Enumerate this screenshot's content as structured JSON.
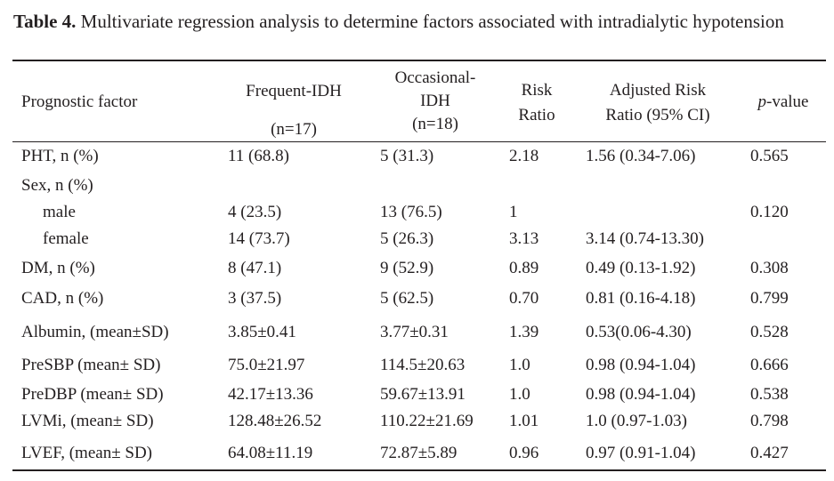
{
  "caption": {
    "label": "Table 4.",
    "text": " Multivariate regression analysis to determine factors associated with intradialytic hypotension"
  },
  "headers": {
    "factor": "Prognostic factor",
    "frequent_l1": "Frequent-IDH",
    "frequent_l2": "(n=17)",
    "occasional_l1": "Occasional-",
    "occasional_l2": "IDH",
    "occasional_l3": "(n=18)",
    "rr_l1": "Risk",
    "rr_l2": "Ratio",
    "arr_l1": "Adjusted Risk",
    "arr_l2": "Ratio (95% CI)",
    "p_italic": "p",
    "p_rest": "-value"
  },
  "rows": [
    {
      "factor": "PHT, n (%)",
      "frequent": "11 (68.8)",
      "occasional": "5 (31.3)",
      "rr": "2.18",
      "arr": "1.56 (0.34-7.06)",
      "p": "0.565"
    },
    {
      "factor": "Sex, n (%)",
      "frequent": "",
      "occasional": "",
      "rr": "",
      "arr": "",
      "p": ""
    },
    {
      "factor": "male",
      "frequent": "4 (23.5)",
      "occasional": "13 (76.5)",
      "rr": "1",
      "arr": "",
      "p": "0.120"
    },
    {
      "factor": "female",
      "frequent": "14 (73.7)",
      "occasional": "5 (26.3)",
      "rr": "3.13",
      "arr": "3.14 (0.74-13.30)",
      "p": ""
    },
    {
      "factor": "DM, n (%)",
      "frequent": "8 (47.1)",
      "occasional": "9 (52.9)",
      "rr": "0.89",
      "arr": "0.49 (0.13-1.92)",
      "p": "0.308"
    },
    {
      "factor": "CAD, n (%)",
      "frequent": "3 (37.5)",
      "occasional": "5 (62.5)",
      "rr": "0.70",
      "arr": "0.81 (0.16-4.18)",
      "p": "0.799"
    },
    {
      "factor": "Albumin, (mean±SD)",
      "frequent": "3.85±0.41",
      "occasional": "3.77±0.31",
      "rr": "1.39",
      "arr": "0.53(0.06-4.30)",
      "p": "0.528"
    },
    {
      "factor": "PreSBP (mean± SD)",
      "frequent": "75.0±21.97",
      "occasional": "114.5±20.63",
      "rr": "1.0",
      "arr": "0.98 (0.94-1.04)",
      "p": "0.666"
    },
    {
      "factor": "PreDBP (mean± SD)",
      "frequent": "42.17±13.36",
      "occasional": "59.67±13.91",
      "rr": "1.0",
      "arr": "0.98 (0.94-1.04)",
      "p": "0.538"
    },
    {
      "factor": "LVMi, (mean± SD)",
      "frequent": "128.48±26.52",
      "occasional": "110.22±21.69",
      "rr": "1.01",
      "arr": "1.0 (0.97-1.03)",
      "p": "0.798"
    },
    {
      "factor": "LVEF, (mean± SD)",
      "frequent": "64.08±11.19",
      "occasional": "72.87±5.89",
      "rr": "0.96",
      "arr": "0.97 (0.91-1.04)",
      "p": "0.427"
    }
  ]
}
